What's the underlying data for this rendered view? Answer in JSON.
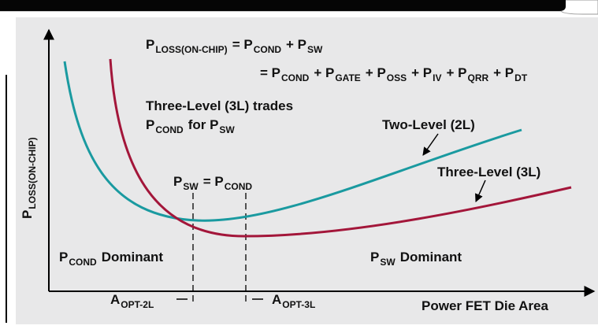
{
  "equation": {
    "line1": [
      {
        "text": "P",
        "sub": "LOSS(ON-CHIP)"
      },
      {
        "text": "= P",
        "sub": "COND"
      },
      {
        "text": "+ P",
        "sub": "SW"
      }
    ],
    "line2": [
      {
        "text": "= P",
        "sub": "COND"
      },
      {
        "text": "+ P",
        "sub": "GATE"
      },
      {
        "text": "+ P",
        "sub": "OSS"
      },
      {
        "text": "+ P",
        "sub": "IV"
      },
      {
        "text": "+ P",
        "sub": "QRR"
      },
      {
        "text": "+ P",
        "sub": "DT"
      }
    ]
  },
  "note": {
    "line1": [
      {
        "text": "Three-Level (3L) trades"
      }
    ],
    "line2": [
      {
        "text": "P",
        "sub": "COND"
      },
      {
        "text": "for P",
        "sub": "SW"
      }
    ]
  },
  "curves": {
    "two_level": [
      {
        "text": "Two-Level (2L)"
      }
    ],
    "three_level": [
      {
        "text": "Three-Level (3L)"
      }
    ]
  },
  "crossover": [
    {
      "text": "P",
      "sub": "SW"
    },
    {
      "text": "= P",
      "sub": "COND"
    }
  ],
  "regions": {
    "left": [
      {
        "text": "P",
        "sub": "COND"
      },
      {
        "text": "Dominant"
      }
    ],
    "right": [
      {
        "text": "P",
        "sub": "SW"
      },
      {
        "text": "Dominant"
      }
    ]
  },
  "axes": {
    "y_label": [
      {
        "text": "P",
        "sub": "LOSS(ON-CHIP)"
      }
    ],
    "x_label": [
      {
        "text": "Power FET Die Area"
      }
    ]
  },
  "optima": {
    "two_level": [
      {
        "text": "A",
        "sub": "OPT-2L"
      }
    ],
    "three_level": [
      {
        "text": "A",
        "sub": "OPT-3L"
      }
    ]
  }
}
